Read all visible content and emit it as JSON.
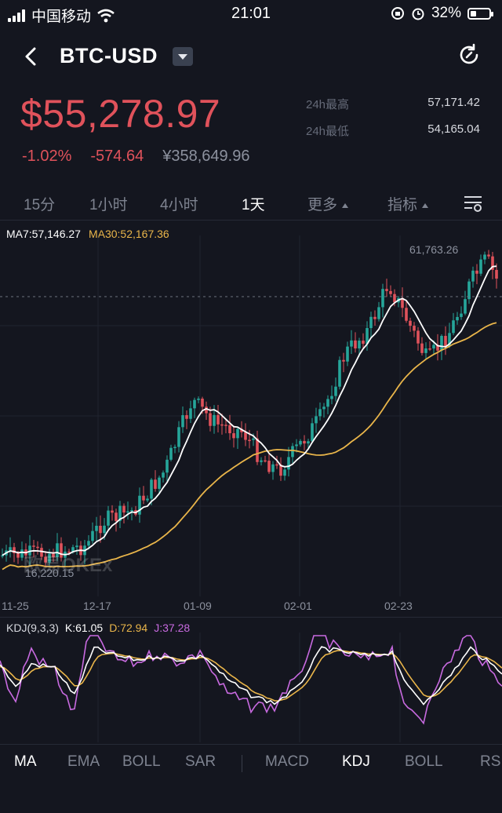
{
  "status_bar": {
    "carrier": "中国移动",
    "time": "21:01",
    "battery": "32%",
    "battery_level": 0.32
  },
  "header": {
    "pair": "BTC-USD",
    "back_icon": "chevron-left-icon",
    "dropdown_icon": "caret-down-icon",
    "refresh_icon": "refresh-icon"
  },
  "price": {
    "last": "$55,278.97",
    "change_pct": "-1.02%",
    "change_abs": "-574.64",
    "cny": "¥358,649.96",
    "high_label": "24h最高",
    "high_value": "57,171.42",
    "low_label": "24h最低",
    "low_value": "54,165.04"
  },
  "tabs": [
    {
      "label": "15分",
      "active": false
    },
    {
      "label": "1小时",
      "active": false
    },
    {
      "label": "4小时",
      "active": false
    },
    {
      "label": "1天",
      "active": true
    },
    {
      "label": "更多",
      "active": false
    },
    {
      "label": "指标",
      "active": false
    }
  ],
  "chart": {
    "ma7_label": "MA7:57,146.27",
    "ma30_label": "MA30:52,167.36",
    "max_label": "61,763.26",
    "min_label": "16,220.15",
    "watermark": "欧易OKEx",
    "x_labels": [
      "11-25",
      "12-17",
      "01-09",
      "02-01",
      "02-23"
    ]
  },
  "kdj": {
    "label": "KDJ(9,3,3)",
    "k": "K:61.05",
    "d": "D:72.94",
    "j": "J:37.28"
  },
  "indicators": [
    {
      "label": "MA",
      "active": true
    },
    {
      "label": "EMA",
      "active": false
    },
    {
      "label": "BOLL",
      "active": false
    },
    {
      "label": "SAR",
      "active": false
    },
    {
      "label": "MACD",
      "active": false
    },
    {
      "label": "KDJ",
      "active": true
    },
    {
      "label": "BOLL",
      "active": false
    },
    {
      "label": "RS",
      "active": false
    }
  ],
  "colors": {
    "up": "#26a69a",
    "down": "#e0525b",
    "ma7": "#ffffff",
    "ma30": "#e9b54a",
    "kdj_j": "#c86ae0"
  }
}
